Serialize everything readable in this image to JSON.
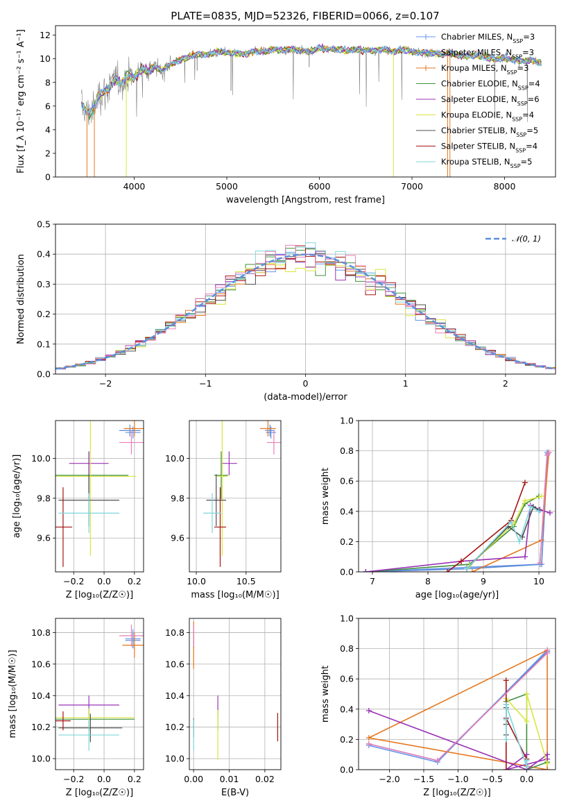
{
  "figure": {
    "title": "PLATE=0835, MJD=52326, FIBERID=0066, z=0.107"
  },
  "colors": {
    "Chabrier MILES": "#6495ed",
    "Salpeter MILES": "#5b8bd6",
    "Kroupa MILES": "#e6761b",
    "Chabrier ELODIE": "#3f8f3f",
    "Salpeter ELODIE": "#9932b5",
    "Kroupa ELODIE": "#d8e63b",
    "Chabrier STELIB": "#4d4d4d",
    "Salpeter STELIB": "#a31212",
    "Kroupa STELIB": "#7fd6dc",
    "grid": "#b0b0b0",
    "observed": "#808080",
    "normal": "#5b8fd9",
    "hist_extra": "#e87fb6"
  },
  "chart_data": [
    {
      "id": "spectrum",
      "type": "line",
      "title": "PLATE=0835, MJD=52326, FIBERID=0066, z=0.107",
      "xlabel": "wavelength [Angstrom, rest frame]",
      "ylabel": "Flux [f_λ 10⁻¹⁷ erg cm⁻² s⁻¹ A⁻¹]",
      "xlim": [
        3150,
        8550
      ],
      "ylim": [
        0,
        12.8
      ],
      "xticks": [
        4000,
        5000,
        6000,
        7000,
        8000
      ],
      "yticks": [
        0,
        2,
        4,
        6,
        8,
        10,
        12
      ],
      "grid": false,
      "legend_position": "top-right",
      "legend": [
        {
          "label": "Chabrier MILES, N_SSP=3",
          "prefix": "Chabrier MILES, N",
          "n": "3"
        },
        {
          "label": "Salpeter MILES, N_SSP=3",
          "prefix": "Salpeter MILES, N",
          "n": "3"
        },
        {
          "label": "Kroupa MILES, N_SSP=3",
          "prefix": "Kroupa MILES, N",
          "n": "3"
        },
        {
          "label": "Chabrier ELODIE, N_SSP=4",
          "prefix": "Chabrier ELODIE, N",
          "n": "4"
        },
        {
          "label": "Salpeter ELODIE, N_SSP=6",
          "prefix": "Salpeter ELODIE, N",
          "n": "6"
        },
        {
          "label": "Kroupa ELODIE, N_SSP=4",
          "prefix": "Kroupa ELODIE, N",
          "n": "4"
        },
        {
          "label": "Chabrier STELIB, N_SSP=5",
          "prefix": "Chabrier STELIB, N",
          "n": "5"
        },
        {
          "label": "Salpeter STELIB, N_SSP=4",
          "prefix": "Salpeter STELIB, N",
          "n": "4"
        },
        {
          "label": "Kroupa STELIB, N_SSP=5",
          "prefix": "Kroupa STELIB, N",
          "n": "5"
        }
      ],
      "continuum": [
        [
          3430,
          6.1
        ],
        [
          3500,
          5.4
        ],
        [
          3560,
          5.7
        ],
        [
          3620,
          7.0
        ],
        [
          3700,
          7.3
        ],
        [
          3800,
          8.3
        ],
        [
          3860,
          7.9
        ],
        [
          3930,
          8.6
        ],
        [
          4000,
          8.4
        ],
        [
          4080,
          9.1
        ],
        [
          4150,
          9.0
        ],
        [
          4230,
          9.3
        ],
        [
          4300,
          9.0
        ],
        [
          4400,
          9.6
        ],
        [
          4500,
          9.9
        ],
        [
          4600,
          10.2
        ],
        [
          4700,
          10.4
        ],
        [
          4800,
          10.3
        ],
        [
          4900,
          10.6
        ],
        [
          5000,
          10.5
        ],
        [
          5100,
          10.5
        ],
        [
          5200,
          10.4
        ],
        [
          5300,
          10.7
        ],
        [
          5400,
          10.6
        ],
        [
          5500,
          10.8
        ],
        [
          5600,
          10.7
        ],
        [
          5700,
          10.8
        ],
        [
          5800,
          10.7
        ],
        [
          5900,
          10.6
        ],
        [
          6000,
          10.9
        ],
        [
          6100,
          10.8
        ],
        [
          6200,
          10.8
        ],
        [
          6300,
          10.7
        ],
        [
          6400,
          10.8
        ],
        [
          6500,
          10.7
        ],
        [
          6600,
          10.7
        ],
        [
          6700,
          10.8
        ],
        [
          6800,
          10.6
        ],
        [
          6900,
          10.8
        ],
        [
          7000,
          10.6
        ],
        [
          7100,
          10.5
        ],
        [
          7200,
          10.5
        ],
        [
          7300,
          10.4
        ],
        [
          7400,
          10.5
        ],
        [
          7500,
          10.3
        ],
        [
          7600,
          10.2
        ],
        [
          7700,
          10.3
        ],
        [
          7800,
          10.1
        ],
        [
          7900,
          10.0
        ],
        [
          8000,
          10.0
        ],
        [
          8100,
          9.9
        ],
        [
          8200,
          9.8
        ],
        [
          8300,
          9.9
        ],
        [
          8400,
          9.6
        ]
      ],
      "dips": [
        [
          3490,
          0
        ],
        [
          3570,
          0
        ],
        [
          3915,
          0
        ],
        [
          5890,
          9.3
        ],
        [
          6800,
          0
        ],
        [
          7385,
          0
        ],
        [
          7410,
          0
        ],
        [
          4680,
          9.0
        ],
        [
          5045,
          7.3
        ]
      ]
    },
    {
      "id": "residual_histogram",
      "type": "histogram",
      "xlabel": "(data-model)/error",
      "ylabel": "Normed distribution",
      "xlim": [
        -2.5,
        2.5
      ],
      "ylim": [
        0,
        0.5
      ],
      "xticks": [
        -2,
        -1,
        0,
        1,
        2
      ],
      "yticks": [
        0.0,
        0.1,
        0.2,
        0.3,
        0.4,
        0.5
      ],
      "grid": true,
      "bin_width": 0.1,
      "legend": [
        {
          "label": "𝒩(0, 1)"
        }
      ],
      "legend_position": "top-right",
      "normal_curve": {
        "mean": 0,
        "sigma": 1
      }
    },
    {
      "id": "age_vs_Z",
      "type": "errorbar",
      "xlabel": "Z [log₁₀(Z/Z☉)]",
      "ylabel": "age  [log₁₀(age/yr)]",
      "xlim": [
        -0.32,
        0.26
      ],
      "ylim": [
        9.43,
        10.19
      ],
      "xticks": [
        -0.2,
        0.0,
        0.2
      ],
      "yticks": [
        9.6,
        9.8,
        10.0
      ],
      "grid": true,
      "points": [
        {
          "model": "Chabrier MILES",
          "x": 0.19,
          "xerr": 0.05,
          "y": 10.13,
          "yerr": 0.03
        },
        {
          "model": "Salpeter MILES",
          "x": 0.17,
          "xerr": 0.07,
          "y": 10.14,
          "yerr": 0.03
        },
        {
          "model": "Kroupa MILES",
          "x": 0.2,
          "xerr": 0.07,
          "y": 10.15,
          "yerr": 0.04
        },
        {
          "model": "Chabrier ELODIE",
          "x": -0.1,
          "xerr": 0.26,
          "y": 9.915,
          "yerr": 0.12
        },
        {
          "model": "Salpeter ELODIE",
          "x": -0.1,
          "xerr": 0.13,
          "y": 9.975,
          "yerr": 0.06
        },
        {
          "model": "Kroupa ELODIE",
          "x": -0.09,
          "xerr": 0.3,
          "y": 9.91,
          "yerr": 0.4
        },
        {
          "model": "Chabrier STELIB",
          "x": -0.1,
          "xerr": 0.2,
          "y": 9.79,
          "yerr": 0.13
        },
        {
          "model": "Salpeter STELIB",
          "x": -0.27,
          "xerr": 0.06,
          "y": 9.655,
          "yerr": 0.2
        },
        {
          "model": "Kroupa STELIB",
          "x": -0.1,
          "xerr": 0.2,
          "y": 9.725,
          "yerr": 0.1
        },
        {
          "model": "extra",
          "x": 0.18,
          "xerr": 0.08,
          "y": 10.08,
          "yerr": 0.06
        }
      ]
    },
    {
      "id": "age_vs_mass",
      "type": "errorbar",
      "xlabel": "mass [log₁₀(M/M☉)]",
      "ylabel": "",
      "xlim": [
        9.93,
        10.85
      ],
      "ylim": [
        9.43,
        10.19
      ],
      "xticks": [
        10.0,
        10.5
      ],
      "yticks": [
        9.6,
        9.8,
        10.0
      ],
      "grid": true,
      "points": [
        {
          "model": "Chabrier MILES",
          "x": 10.75,
          "xerr": 0.05,
          "y": 10.13,
          "yerr": 0.03
        },
        {
          "model": "Salpeter MILES",
          "x": 10.74,
          "xerr": 0.05,
          "y": 10.14,
          "yerr": 0.03
        },
        {
          "model": "Kroupa MILES",
          "x": 10.72,
          "xerr": 0.08,
          "y": 10.15,
          "yerr": 0.04
        },
        {
          "model": "Chabrier ELODIE",
          "x": 10.25,
          "xerr": 0.07,
          "y": 9.915,
          "yerr": 0.12
        },
        {
          "model": "Salpeter ELODIE",
          "x": 10.33,
          "xerr": 0.08,
          "y": 9.975,
          "yerr": 0.06
        },
        {
          "model": "Kroupa ELODIE",
          "x": 10.26,
          "xerr": 0.05,
          "y": 9.91,
          "yerr": 0.4
        },
        {
          "model": "Chabrier STELIB",
          "x": 10.2,
          "xerr": 0.1,
          "y": 9.79,
          "yerr": 0.13
        },
        {
          "model": "Salpeter STELIB",
          "x": 10.24,
          "xerr": 0.06,
          "y": 9.655,
          "yerr": 0.2
        },
        {
          "model": "Kroupa STELIB",
          "x": 10.16,
          "xerr": 0.09,
          "y": 9.725,
          "yerr": 0.1
        },
        {
          "model": "extra",
          "x": 10.78,
          "xerr": 0.07,
          "y": 10.08,
          "yerr": 0.06
        }
      ]
    },
    {
      "id": "mass_vs_Z",
      "type": "errorbar",
      "xlabel": "Z [log₁₀(Z/Z☉)]",
      "ylabel": "mass [log₁₀(M/M☉)]",
      "xlim": [
        -0.32,
        0.26
      ],
      "ylim": [
        9.93,
        10.89
      ],
      "xticks": [
        -0.2,
        0.0,
        0.2
      ],
      "yticks": [
        10.0,
        10.2,
        10.4,
        10.6,
        10.8
      ],
      "grid": true,
      "points": [
        {
          "model": "Chabrier MILES",
          "x": 0.19,
          "xerr": 0.05,
          "y": 10.76,
          "yerr": 0.06
        },
        {
          "model": "Salpeter MILES",
          "x": 0.19,
          "xerr": 0.05,
          "y": 10.75,
          "yerr": 0.05
        },
        {
          "model": "Kroupa MILES",
          "x": 0.2,
          "xerr": 0.08,
          "y": 10.72,
          "yerr": 0.08
        },
        {
          "model": "Chabrier ELODIE",
          "x": -0.1,
          "xerr": 0.3,
          "y": 10.25,
          "yerr": 0.07
        },
        {
          "model": "Salpeter ELODIE",
          "x": -0.1,
          "xerr": 0.2,
          "y": 10.34,
          "yerr": 0.06
        },
        {
          "model": "Kroupa ELODIE",
          "x": -0.1,
          "xerr": 0.3,
          "y": 10.26,
          "yerr": 0.06
        },
        {
          "model": "Chabrier STELIB",
          "x": -0.09,
          "xerr": 0.21,
          "y": 10.195,
          "yerr": 0.09
        },
        {
          "model": "Salpeter STELIB",
          "x": -0.27,
          "xerr": 0.05,
          "y": 10.24,
          "yerr": 0.06
        },
        {
          "model": "Kroupa STELIB",
          "x": -0.1,
          "xerr": 0.2,
          "y": 10.15,
          "yerr": 0.1
        },
        {
          "model": "extra",
          "x": 0.18,
          "xerr": 0.08,
          "y": 10.78,
          "yerr": 0.07
        }
      ]
    },
    {
      "id": "mass_vs_EBV",
      "type": "errorbar",
      "xlabel": "E(B-V)",
      "ylabel": "",
      "xlim": [
        -0.0012,
        0.0245
      ],
      "ylim": [
        9.93,
        10.89
      ],
      "xticks": [
        0.0,
        0.01,
        0.02
      ],
      "yticks": [
        10.0,
        10.2,
        10.4,
        10.6,
        10.8
      ],
      "grid": true,
      "points": [
        {
          "model": "Chabrier MILES",
          "x": 0.0,
          "xerr": 0,
          "y": 10.76,
          "yerr": 0.06
        },
        {
          "model": "Salpeter MILES",
          "x": 0.0,
          "xerr": 0,
          "y": 10.75,
          "yerr": 0.05
        },
        {
          "model": "Kroupa MILES",
          "x": 0.0,
          "xerr": 0,
          "y": 10.72,
          "yerr": 0.15
        },
        {
          "model": "Chabrier ELODIE",
          "x": 0.0068,
          "xerr": 0,
          "y": 10.25,
          "yerr": 0.07
        },
        {
          "model": "Salpeter ELODIE",
          "x": 0.0068,
          "xerr": 0,
          "y": 10.34,
          "yerr": 0.06
        },
        {
          "model": "Kroupa ELODIE",
          "x": 0.0068,
          "xerr": 0,
          "y": 10.15,
          "yerr": 0.16
        },
        {
          "model": "Chabrier STELIB",
          "x": 0.0,
          "xerr": 0,
          "y": 10.195,
          "yerr": 0.06
        },
        {
          "model": "Salpeter STELIB",
          "x": 0.0236,
          "xerr": 0,
          "y": 10.2,
          "yerr": 0.09
        },
        {
          "model": "Kroupa STELIB",
          "x": 0.0,
          "xerr": 0,
          "y": 10.15,
          "yerr": 0.1
        },
        {
          "model": "extra",
          "x": 0.0,
          "xerr": 0,
          "y": 10.78,
          "yerr": 0.07
        }
      ]
    },
    {
      "id": "weight_vs_age",
      "type": "line",
      "xlabel": "age  [log₁₀(age/yr)]",
      "ylabel": "mass weight",
      "xlim": [
        6.75,
        10.3
      ],
      "ylim": [
        0,
        1
      ],
      "xticks": [
        7,
        8,
        9,
        10
      ],
      "yticks": [
        0.0,
        0.2,
        0.4,
        0.6,
        0.8,
        1.0
      ],
      "grid": true,
      "series": [
        {
          "model": "Chabrier MILES",
          "x": [
            6.88,
            8.7,
            10.02,
            10.15
          ],
          "y": [
            0.0,
            0.03,
            0.05,
            0.79
          ]
        },
        {
          "model": "Salpeter MILES",
          "x": [
            6.88,
            8.7,
            10.05,
            10.16
          ],
          "y": [
            0.0,
            0.02,
            0.05,
            0.78
          ]
        },
        {
          "model": "Kroupa MILES",
          "x": [
            8.8,
            10.05,
            10.18
          ],
          "y": [
            0.0,
            0.21,
            0.79
          ]
        },
        {
          "model": "Chabrier ELODIE",
          "x": [
            6.88,
            8.75,
            9.55,
            9.75,
            10.0
          ],
          "y": [
            0.0,
            0.05,
            0.3,
            0.45,
            0.5
          ]
        },
        {
          "model": "Salpeter ELODIE",
          "x": [
            6.88,
            8.6,
            9.75,
            9.85,
            10.02,
            10.2
          ],
          "y": [
            0.0,
            0.07,
            0.1,
            0.44,
            0.41,
            0.39
          ]
        },
        {
          "model": "Kroupa ELODIE",
          "x": [
            8.75,
            9.55,
            9.75,
            10.05
          ],
          "y": [
            0.04,
            0.32,
            0.47,
            0.5
          ]
        },
        {
          "model": "Chabrier STELIB",
          "x": [
            8.7,
            9.45,
            9.7,
            9.9,
            10.0
          ],
          "y": [
            0.02,
            0.3,
            0.23,
            0.43,
            0.41
          ]
        },
        {
          "model": "Salpeter STELIB",
          "x": [
            8.35,
            8.6,
            9.5,
            9.75
          ],
          "y": [
            0.0,
            0.07,
            0.34,
            0.59
          ]
        },
        {
          "model": "Kroupa STELIB",
          "x": [
            8.7,
            9.5,
            9.65,
            9.85,
            10.0
          ],
          "y": [
            0.02,
            0.33,
            0.2,
            0.43,
            0.4
          ]
        },
        {
          "model": "extra",
          "x": [
            10.02,
            10.15,
            10.18
          ],
          "y": [
            0.06,
            0.77,
            0.79
          ]
        }
      ]
    },
    {
      "id": "weight_vs_Z",
      "type": "line",
      "xlabel": "Z [log₁₀(Z/Z☉)]",
      "ylabel": "mass weight",
      "xlim": [
        -2.45,
        0.42
      ],
      "ylim": [
        0,
        1
      ],
      "xticks": [
        -2.0,
        -1.5,
        -1.0,
        -0.5,
        0.0
      ],
      "yticks": [
        0.0,
        0.2,
        0.4,
        0.6,
        0.8,
        1.0
      ],
      "grid": true,
      "series": [
        {
          "model": "Chabrier MILES",
          "x": [
            -2.3,
            -1.3,
            0.3
          ],
          "y": [
            0.16,
            0.05,
            0.79
          ]
        },
        {
          "model": "Salpeter MILES",
          "x": [
            -2.3,
            -1.3,
            0.3
          ],
          "y": [
            0.17,
            0.06,
            0.78
          ]
        },
        {
          "model": "Kroupa MILES",
          "x": [
            0.3,
            -2.3,
            0.3,
            0.3
          ],
          "y": [
            0.0,
            0.21,
            0.79,
            0.0
          ]
        },
        {
          "model": "Chabrier ELODIE",
          "x": [
            0.3,
            0.0,
            0.0,
            -0.3,
            -0.3
          ],
          "y": [
            0.05,
            0.0,
            0.5,
            0.45,
            0.3
          ]
        },
        {
          "model": "Salpeter ELODIE",
          "x": [
            -2.3,
            0.0,
            0.3,
            0.3,
            -0.3,
            0.0
          ],
          "y": [
            0.39,
            0.0,
            0.1,
            0.07,
            0.0,
            0.1
          ]
        },
        {
          "model": "Kroupa ELODIE",
          "x": [
            0.3,
            0.0,
            0.0,
            -0.3
          ],
          "y": [
            0.04,
            0.5,
            0.32,
            0.47
          ]
        },
        {
          "model": "Chabrier STELIB",
          "x": [
            -0.3,
            -0.3,
            -0.3,
            -0.3
          ],
          "y": [
            0.23,
            0.3,
            0.43,
            0.41
          ]
        },
        {
          "model": "Salpeter STELIB",
          "x": [
            -0.3,
            -0.3,
            -0.3,
            0.0
          ],
          "y": [
            0.0,
            0.59,
            0.34,
            0.07
          ]
        },
        {
          "model": "Kroupa STELIB",
          "x": [
            -0.3,
            -0.3,
            -0.3,
            0.0,
            0.0
          ],
          "y": [
            0.2,
            0.33,
            0.43,
            0.02,
            0.06
          ]
        },
        {
          "model": "extra",
          "x": [
            -2.3,
            -1.3,
            0.3,
            0.3
          ],
          "y": [
            0.17,
            0.06,
            0.77,
            0.79
          ]
        }
      ]
    }
  ]
}
